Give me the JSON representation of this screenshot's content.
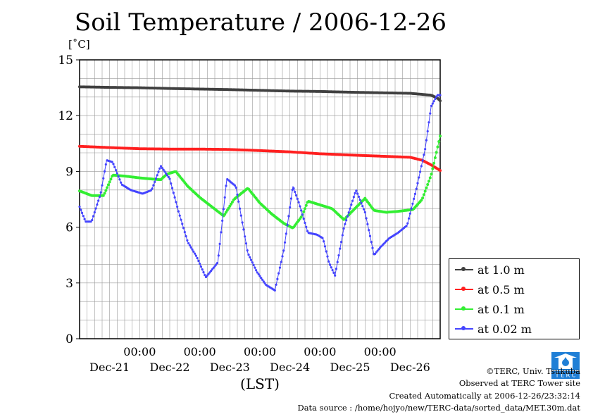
{
  "chart_data": {
    "type": "line",
    "title": "Soil Temperature / 2006-12-26",
    "ylabel": "[˚C]",
    "xlabel": "(LST)",
    "ylim": [
      0,
      15
    ],
    "yticks": [
      "0",
      "3",
      "6",
      "9",
      "12",
      "15"
    ],
    "xlim_days": [
      0,
      6
    ],
    "x_tick_time_labels": [
      "00:00",
      "00:00",
      "00:00",
      "00:00",
      "00:00"
    ],
    "x_tick_date_labels": [
      "Dec-21",
      "Dec-22",
      "Dec-23",
      "Dec-24",
      "Dec-25",
      "Dec-26"
    ],
    "grid": true,
    "legend_position": "bottom-right-outside",
    "series": [
      {
        "name": "at 1.0 m",
        "color": "#404040",
        "x": [
          0,
          0.5,
          1,
          1.5,
          2,
          2.5,
          3,
          3.5,
          4,
          4.5,
          5,
          5.5,
          5.85,
          5.95,
          6
        ],
        "y": [
          13.55,
          13.52,
          13.5,
          13.46,
          13.43,
          13.4,
          13.36,
          13.32,
          13.3,
          13.26,
          13.23,
          13.2,
          13.1,
          12.95,
          12.8
        ]
      },
      {
        "name": "at 0.5 m",
        "color": "#ff2020",
        "x": [
          0,
          0.5,
          1,
          1.5,
          2,
          2.5,
          3,
          3.5,
          4,
          4.5,
          5,
          5.5,
          5.7,
          5.85,
          6
        ],
        "y": [
          10.35,
          10.28,
          10.22,
          10.2,
          10.2,
          10.18,
          10.12,
          10.05,
          9.95,
          9.88,
          9.82,
          9.76,
          9.6,
          9.35,
          9.05
        ]
      },
      {
        "name": "at 0.1 m",
        "color": "#33ee33",
        "x": [
          0,
          0.2,
          0.4,
          0.55,
          0.75,
          1,
          1.35,
          1.45,
          1.6,
          1.8,
          2,
          2.4,
          2.57,
          2.8,
          3,
          3.2,
          3.4,
          3.55,
          3.7,
          3.8,
          4,
          4.2,
          4.4,
          4.55,
          4.75,
          4.9,
          5.1,
          5.3,
          5.55,
          5.7,
          5.85,
          6
        ],
        "y": [
          7.95,
          7.7,
          7.7,
          8.8,
          8.75,
          8.65,
          8.55,
          8.85,
          9.0,
          8.2,
          7.6,
          6.6,
          7.5,
          8.1,
          7.3,
          6.7,
          6.2,
          5.95,
          6.6,
          7.4,
          7.2,
          7.0,
          6.4,
          6.9,
          7.55,
          6.9,
          6.8,
          6.85,
          6.95,
          7.5,
          8.8,
          10.9
        ]
      },
      {
        "name": "at 0.02 m",
        "color": "#4444ff",
        "x": [
          0,
          0.1,
          0.2,
          0.35,
          0.45,
          0.55,
          0.7,
          0.85,
          1.05,
          1.2,
          1.35,
          1.5,
          1.65,
          1.8,
          1.95,
          2.1,
          2.3,
          2.45,
          2.6,
          2.8,
          2.95,
          3.1,
          3.25,
          3.4,
          3.55,
          3.65,
          3.8,
          3.95,
          4.05,
          4.15,
          4.25,
          4.4,
          4.6,
          4.75,
          4.9,
          5.0,
          5.15,
          5.3,
          5.45,
          5.6,
          5.75,
          5.85,
          5.95,
          6.0
        ],
        "y": [
          7.1,
          6.3,
          6.3,
          7.8,
          9.6,
          9.5,
          8.3,
          8.0,
          7.8,
          8.0,
          9.3,
          8.6,
          6.8,
          5.2,
          4.4,
          3.3,
          4.1,
          8.6,
          8.2,
          4.6,
          3.6,
          2.9,
          2.6,
          4.8,
          8.2,
          7.3,
          5.7,
          5.6,
          5.4,
          4.1,
          3.4,
          6.0,
          8.0,
          6.8,
          4.5,
          4.9,
          5.4,
          5.7,
          6.1,
          8.0,
          10.2,
          12.5,
          13.1,
          13.1
        ]
      }
    ]
  },
  "footer": {
    "copyright": "©TERC, Univ. Tsukuba",
    "observed": "Observed at TERC Tower site",
    "created": "Created Automatically at 2006-12-26/23:32:14",
    "source": "Data source : /home/hojyo/new/TERC-data/sorted_data/MET.30m.dat",
    "logo_text": "T E R C"
  }
}
